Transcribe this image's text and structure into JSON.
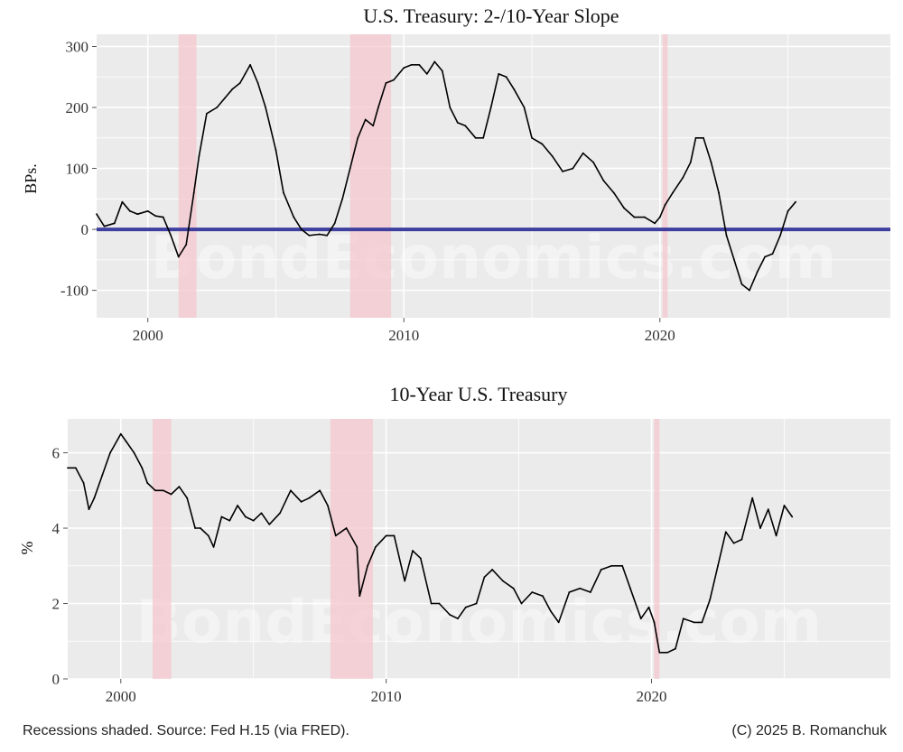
{
  "chart_data": [
    {
      "type": "line",
      "title": "U.S. Treasury: 2-/10-Year Slope",
      "ylabel": "BPs.",
      "xlabel": "",
      "xlim": [
        1998.0,
        2029.0
      ],
      "ylim": [
        -145,
        320
      ],
      "xticks": [
        2000,
        2010,
        2020
      ],
      "xtick_labels": [
        "2000",
        "2010",
        "2020"
      ],
      "yticks": [
        -100,
        0,
        100,
        200,
        300
      ],
      "ytick_labels": [
        "-100",
        "0",
        "100",
        "200",
        "300"
      ],
      "grid": true,
      "reference_line": {
        "y": 0,
        "color": "#3f3f9f"
      },
      "recessions": [
        [
          2001.2,
          2001.9
        ],
        [
          2007.9,
          2009.5
        ],
        [
          2020.1,
          2020.3
        ]
      ],
      "series": [
        {
          "name": "",
          "x": [
            1998.0,
            1998.3,
            1998.7,
            1999.0,
            1999.3,
            1999.6,
            2000.0,
            2000.3,
            2000.6,
            2000.9,
            2001.2,
            2001.5,
            2001.8,
            2002.0,
            2002.3,
            2002.7,
            2003.0,
            2003.3,
            2003.6,
            2003.8,
            2004.0,
            2004.3,
            2004.6,
            2005.0,
            2005.3,
            2005.7,
            2006.0,
            2006.3,
            2006.7,
            2007.0,
            2007.3,
            2007.6,
            2007.9,
            2008.2,
            2008.5,
            2008.8,
            2009.0,
            2009.3,
            2009.6,
            2010.0,
            2010.3,
            2010.6,
            2010.9,
            2011.2,
            2011.5,
            2011.8,
            2012.1,
            2012.4,
            2012.8,
            2013.1,
            2013.4,
            2013.7,
            2014.0,
            2014.3,
            2014.7,
            2015.0,
            2015.4,
            2015.8,
            2016.2,
            2016.6,
            2017.0,
            2017.4,
            2017.8,
            2018.2,
            2018.6,
            2019.0,
            2019.4,
            2019.8,
            2020.0,
            2020.2,
            2020.5,
            2020.9,
            2021.2,
            2021.4,
            2021.7,
            2022.0,
            2022.3,
            2022.6,
            2022.9,
            2023.2,
            2023.5,
            2023.8,
            2024.1,
            2024.4,
            2024.7,
            2025.0,
            2025.3
          ],
          "values": [
            25,
            5,
            10,
            45,
            30,
            25,
            30,
            22,
            20,
            -10,
            -45,
            -25,
            60,
            120,
            190,
            200,
            215,
            230,
            240,
            255,
            270,
            240,
            200,
            130,
            60,
            20,
            0,
            -10,
            -8,
            -10,
            10,
            50,
            100,
            150,
            180,
            170,
            200,
            240,
            245,
            265,
            270,
            270,
            255,
            275,
            260,
            200,
            175,
            170,
            150,
            150,
            200,
            255,
            250,
            230,
            200,
            150,
            140,
            120,
            95,
            100,
            125,
            110,
            80,
            60,
            35,
            20,
            20,
            10,
            20,
            40,
            60,
            85,
            110,
            150,
            150,
            110,
            60,
            -10,
            -50,
            -90,
            -100,
            -70,
            -45,
            -40,
            -10,
            30,
            45
          ]
        }
      ]
    },
    {
      "type": "line",
      "title": "10-Year U.S. Treasury",
      "ylabel": "%",
      "xlabel": "",
      "xlim": [
        1998.0,
        2029.0
      ],
      "ylim": [
        0.0,
        6.9
      ],
      "xticks": [
        2000,
        2010,
        2020
      ],
      "xtick_labels": [
        "2000",
        "2010",
        "2020"
      ],
      "yticks": [
        0,
        2,
        4,
        6
      ],
      "ytick_labels": [
        "0",
        "2",
        "4",
        "6"
      ],
      "grid": true,
      "recessions": [
        [
          2001.2,
          2001.9
        ],
        [
          2007.9,
          2009.5
        ],
        [
          2020.1,
          2020.3
        ]
      ],
      "series": [
        {
          "name": "",
          "x": [
            1998.0,
            1998.3,
            1998.6,
            1998.8,
            1999.0,
            1999.3,
            1999.6,
            2000.0,
            2000.2,
            2000.5,
            2000.8,
            2001.0,
            2001.3,
            2001.6,
            2001.9,
            2002.2,
            2002.5,
            2002.8,
            2003.0,
            2003.3,
            2003.5,
            2003.8,
            2004.1,
            2004.4,
            2004.7,
            2005.0,
            2005.3,
            2005.6,
            2006.0,
            2006.4,
            2006.8,
            2007.1,
            2007.5,
            2007.8,
            2008.1,
            2008.5,
            2008.9,
            2009.0,
            2009.3,
            2009.6,
            2010.0,
            2010.3,
            2010.7,
            2011.0,
            2011.3,
            2011.7,
            2012.0,
            2012.4,
            2012.7,
            2013.0,
            2013.4,
            2013.7,
            2014.0,
            2014.4,
            2014.8,
            2015.1,
            2015.5,
            2015.9,
            2016.2,
            2016.5,
            2016.9,
            2017.3,
            2017.7,
            2018.1,
            2018.5,
            2018.9,
            2019.2,
            2019.6,
            2019.9,
            2020.1,
            2020.3,
            2020.6,
            2020.9,
            2021.2,
            2021.6,
            2021.9,
            2022.2,
            2022.5,
            2022.8,
            2023.1,
            2023.4,
            2023.8,
            2024.1,
            2024.4,
            2024.7,
            2025.0,
            2025.3
          ],
          "values": [
            5.6,
            5.6,
            5.2,
            4.5,
            4.8,
            5.4,
            6.0,
            6.5,
            6.3,
            6.0,
            5.6,
            5.2,
            5.0,
            5.0,
            4.9,
            5.1,
            4.8,
            4.0,
            4.0,
            3.8,
            3.5,
            4.3,
            4.2,
            4.6,
            4.3,
            4.2,
            4.4,
            4.1,
            4.4,
            5.0,
            4.7,
            4.8,
            5.0,
            4.6,
            3.8,
            4.0,
            3.5,
            2.2,
            3.0,
            3.5,
            3.8,
            3.8,
            2.6,
            3.4,
            3.2,
            2.0,
            2.0,
            1.7,
            1.6,
            1.9,
            2.0,
            2.7,
            2.9,
            2.6,
            2.4,
            2.0,
            2.3,
            2.2,
            1.8,
            1.5,
            2.3,
            2.4,
            2.3,
            2.9,
            3.0,
            3.0,
            2.4,
            1.6,
            1.9,
            1.5,
            0.7,
            0.7,
            0.8,
            1.6,
            1.5,
            1.5,
            2.1,
            3.0,
            3.9,
            3.6,
            3.7,
            4.8,
            4.0,
            4.5,
            3.8,
            4.6,
            4.3
          ]
        }
      ]
    }
  ],
  "watermark": "BondEconomics.com",
  "footer": {
    "left": "Recessions shaded. Source: Fed H.15 (via FRED).",
    "right": "(C) 2025 B. Romanchuk"
  },
  "colors": {
    "panel_background": "#ebebeb",
    "gridline": "#ffffff",
    "recession_shade": "#f4c7cd",
    "series_line": "#000000",
    "zero_line": "#3f3f9f"
  }
}
